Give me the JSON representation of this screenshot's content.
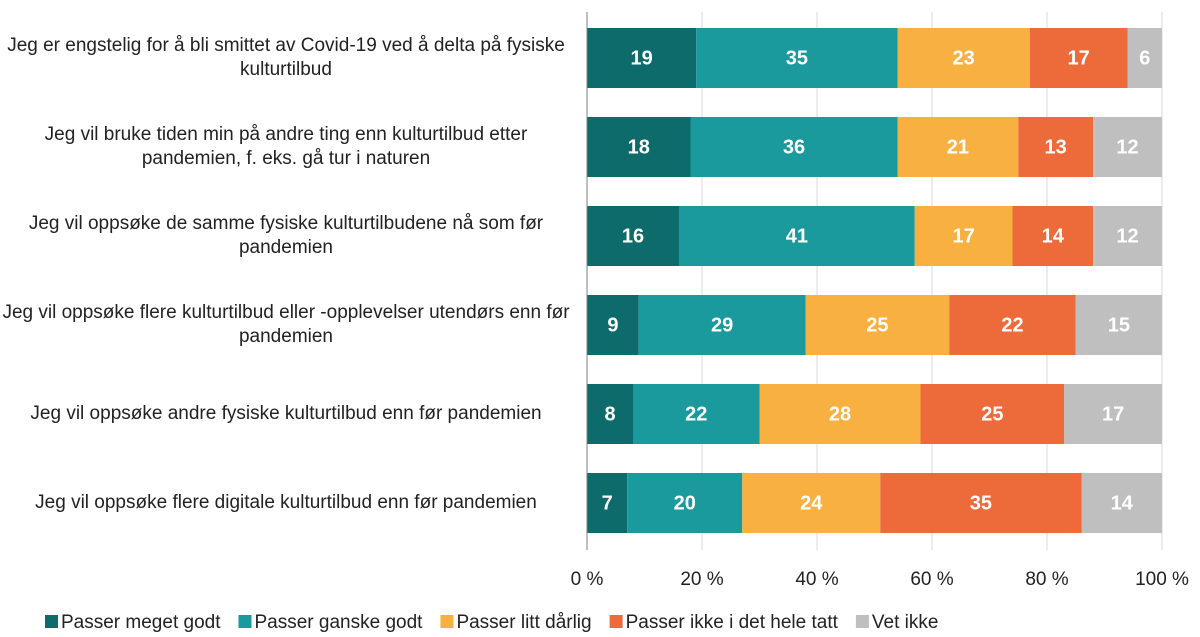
{
  "chart_data": {
    "type": "stacked-barh",
    "categories": [
      "Jeg er engstelig for å bli smittet av Covid-19 ved å delta på fysiske kulturtilbud",
      "Jeg vil bruke tiden min på andre ting enn kulturtilbud etter pandemien, f. eks. gå tur i naturen",
      "Jeg vil oppsøke de samme fysiske kulturtilbudene nå som før pandemien",
      "Jeg vil oppsøke flere kulturtilbud eller -opplevelser utendørs enn før pandemien",
      "Jeg vil oppsøke andre fysiske kulturtilbud enn før pandemien",
      "Jeg vil oppsøke flere digitale kulturtilbud enn før pandemien"
    ],
    "series": [
      {
        "name": "Passer meget godt",
        "color": "#0e6b6b",
        "values": [
          19,
          18,
          16,
          9,
          8,
          7
        ]
      },
      {
        "name": "Passer ganske godt",
        "color": "#1b9a9e",
        "values": [
          35,
          36,
          41,
          29,
          22,
          20
        ]
      },
      {
        "name": "Passer litt dårlig",
        "color": "#f8b141",
        "values": [
          23,
          21,
          17,
          25,
          28,
          24
        ]
      },
      {
        "name": "Passer ikke i det hele tatt",
        "color": "#ed6a3a",
        "values": [
          17,
          13,
          14,
          22,
          25,
          35
        ]
      },
      {
        "name": "Vet ikke",
        "color": "#bfbfbf",
        "values": [
          6,
          12,
          12,
          15,
          17,
          14
        ]
      }
    ],
    "xlim": [
      0,
      100
    ],
    "xticks": [
      {
        "value": 0,
        "label": "0 %"
      },
      {
        "value": 20,
        "label": "20 %"
      },
      {
        "value": 40,
        "label": "40 %"
      },
      {
        "value": 60,
        "label": "60 %"
      },
      {
        "value": 80,
        "label": "80 %"
      },
      {
        "value": 100,
        "label": "100 %"
      }
    ],
    "grid": true,
    "legend": "bottom"
  }
}
